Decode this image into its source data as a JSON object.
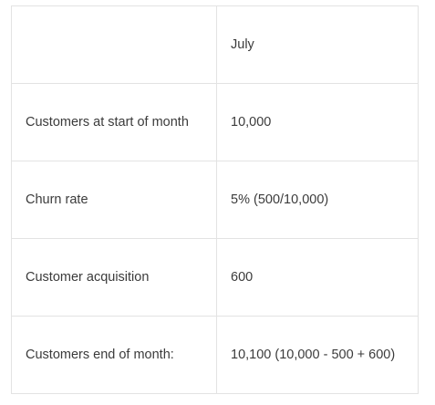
{
  "table": {
    "header": [
      "",
      "July"
    ],
    "rows": [
      [
        "Customers at start of month",
        "10,000"
      ],
      [
        "Churn rate",
        "5% (500/10,000)"
      ],
      [
        "Customer acquisition",
        "600"
      ],
      [
        "Customers end of month:",
        "10,100 (10,000 - 500 + 600)"
      ]
    ]
  }
}
